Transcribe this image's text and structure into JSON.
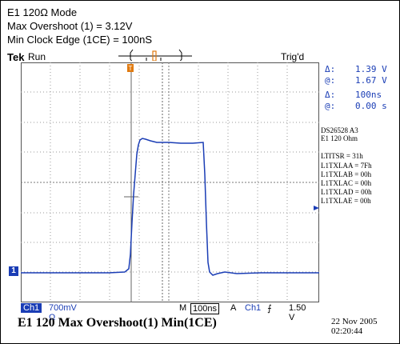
{
  "caption": {
    "line1": "E1 120Ω Mode",
    "line2": "Max Overshoot (1) = 3.12V",
    "line3": "Min Clock Edge (1CE) = 100nS"
  },
  "header": {
    "brand": "Tek",
    "run_label": "Run",
    "trig_label": "Trig'd"
  },
  "measurements": {
    "delta_v_label": "Δ:",
    "delta_v": "1.39 V",
    "at_v_label": "@:",
    "at_v": "1.67 V",
    "delta_t_label": "Δ:",
    "delta_t": "100ns",
    "at_t_label": "@:",
    "at_t": "0.00 s"
  },
  "notes": {
    "device": "DS26528  A3",
    "mode": "E1 120 Ohm",
    "regs": [
      "LTITSR = 31h",
      "L1TXLAA = 7Fh",
      "L1TXLAB = 00h",
      "L1TXLAC = 00h",
      "L1TXLAD = 00h",
      "L1TXLAE = 00h"
    ]
  },
  "channel_marker": "1",
  "status": {
    "ch": "Ch1",
    "scale": "700mV Ω",
    "time_mode": "M",
    "time_scale": "100ns",
    "trig_a": "A",
    "trig_ch": "Ch1",
    "trig_slope": "⨍",
    "trig_level": "1.50 V"
  },
  "footer": {
    "title": "E1 120 Max Overshoot(1)  Min(1CE)",
    "date": "22 Nov 2005",
    "time": "02:20:44"
  },
  "colors": {
    "trace": "#1a3db5",
    "grid": "#9a9a9a",
    "trigger_marker": "#e07a10"
  }
}
